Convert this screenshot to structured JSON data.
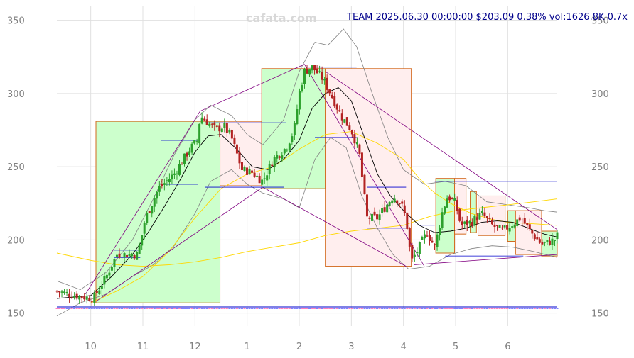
{
  "watermark": "cafata.com",
  "header": {
    "info": "TEAM 2025.06.30 00:00:00 $203.09 0.38% vol:1626.8K 0.7x"
  },
  "colors": {
    "up_candle": "#2ca02c",
    "down_candle": "#b22222",
    "up_box_fill": "#ccffcc",
    "down_box_fill": "#ffeeee",
    "box_border": "#d2691e",
    "grid": "#e0e0e0",
    "tick_text": "#808080",
    "header_text": "#00008b",
    "ma_short": "#000000",
    "ma_mid": "#ffd700",
    "ma_long": "#ffd700",
    "bands": "#808080",
    "trendlines": "#800080",
    "levels": "#0000cd"
  },
  "chart_data": {
    "type": "candlestick",
    "ticker": "TEAM",
    "xlabel": "",
    "ylabel": "",
    "x_range": [
      9.35,
      6.95
    ],
    "ylim": [
      145,
      360
    ],
    "y_ticks": [
      150,
      200,
      250,
      300,
      350
    ],
    "x_ticks": [
      {
        "label": "10",
        "t": 10.0
      },
      {
        "label": "11",
        "t": 11.0
      },
      {
        "label": "12",
        "t": 12.0
      },
      {
        "label": "1",
        "t": 13.0
      },
      {
        "label": "2",
        "t": 14.0
      },
      {
        "label": "3",
        "t": 15.0
      },
      {
        "label": "4",
        "t": 16.0
      },
      {
        "label": "5",
        "t": 17.0
      },
      {
        "label": "6",
        "t": 18.0
      }
    ],
    "grid": true,
    "last": {
      "date": "2025.06.30",
      "close": 203.09,
      "change_pct": 0.38,
      "volume": "1626.8K",
      "volume_ratio": "0.7x"
    },
    "price_path": [
      [
        9.35,
        165
      ],
      [
        9.7,
        162
      ],
      [
        10.05,
        160
      ],
      [
        10.3,
        175
      ],
      [
        10.5,
        190
      ],
      [
        10.9,
        190
      ],
      [
        11.05,
        215
      ],
      [
        11.3,
        235
      ],
      [
        11.6,
        245
      ],
      [
        11.9,
        262
      ],
      [
        12.05,
        268
      ],
      [
        12.1,
        285
      ],
      [
        12.4,
        275
      ],
      [
        12.55,
        278
      ],
      [
        12.7,
        270
      ],
      [
        12.9,
        248
      ],
      [
        13.1,
        246
      ],
      [
        13.3,
        240
      ],
      [
        13.5,
        255
      ],
      [
        13.75,
        263
      ],
      [
        13.9,
        275
      ],
      [
        14.0,
        300
      ],
      [
        14.1,
        315
      ],
      [
        14.25,
        318
      ],
      [
        14.45,
        310
      ],
      [
        14.6,
        300
      ],
      [
        14.8,
        285
      ],
      [
        15.0,
        275
      ],
      [
        15.15,
        260
      ],
      [
        15.3,
        215
      ],
      [
        15.5,
        215
      ],
      [
        15.8,
        230
      ],
      [
        15.95,
        225
      ],
      [
        16.05,
        215
      ],
      [
        16.15,
        185
      ],
      [
        16.3,
        195
      ],
      [
        16.45,
        205
      ],
      [
        16.6,
        195
      ],
      [
        16.75,
        220
      ],
      [
        16.85,
        230
      ],
      [
        17.0,
        225
      ],
      [
        17.1,
        210
      ],
      [
        17.3,
        212
      ],
      [
        17.5,
        218
      ],
      [
        17.7,
        210
      ],
      [
        17.9,
        206
      ],
      [
        18.05,
        210
      ],
      [
        18.25,
        215
      ],
      [
        18.45,
        205
      ],
      [
        18.65,
        197
      ],
      [
        18.75,
        198
      ],
      [
        18.9,
        200
      ],
      [
        18.95,
        203
      ]
    ],
    "boxes": [
      {
        "t0": 10.1,
        "t1": 12.48,
        "low": 157,
        "high": 281,
        "direction": "up"
      },
      {
        "t0": 12.48,
        "t1": 13.28,
        "low": 237,
        "high": 281,
        "direction": "down"
      },
      {
        "t0": 13.28,
        "t1": 14.5,
        "low": 235,
        "high": 317,
        "direction": "up"
      },
      {
        "t0": 14.5,
        "t1": 16.15,
        "low": 182,
        "high": 317,
        "direction": "down"
      },
      {
        "t0": 16.62,
        "t1": 16.98,
        "low": 191,
        "high": 242,
        "direction": "up"
      },
      {
        "t0": 16.98,
        "t1": 17.2,
        "low": 204,
        "high": 242,
        "direction": "down"
      },
      {
        "t0": 17.28,
        "t1": 17.4,
        "low": 205,
        "high": 233,
        "direction": "up"
      },
      {
        "t0": 17.43,
        "t1": 17.95,
        "low": 203,
        "high": 230,
        "direction": "down"
      },
      {
        "t0": 18.0,
        "t1": 18.15,
        "low": 199,
        "high": 220,
        "direction": "up"
      },
      {
        "t0": 18.15,
        "t1": 18.65,
        "low": 190,
        "high": 220,
        "direction": "down"
      },
      {
        "t0": 18.65,
        "t1": 18.95,
        "low": 189,
        "high": 206,
        "direction": "up"
      }
    ],
    "trendlines": [
      {
        "from": [
          9.9,
          163
        ],
        "to": [
          12.1,
          288
        ]
      },
      {
        "from": [
          12.1,
          288
        ],
        "to": [
          14.1,
          320
        ]
      },
      {
        "from": [
          14.1,
          320
        ],
        "to": [
          16.4,
          182
        ]
      },
      {
        "from": [
          13.3,
          236
        ],
        "to": [
          16.05,
          182
        ]
      },
      {
        "from": [
          10.1,
          158
        ],
        "to": [
          13.3,
          236
        ]
      },
      {
        "from": [
          14.5,
          315
        ],
        "to": [
          18.95,
          207
        ]
      },
      {
        "from": [
          16.2,
          183
        ],
        "to": [
          18.95,
          190
        ]
      }
    ],
    "levels": [
      {
        "t0": 10.45,
        "t1": 10.95,
        "price": 193
      },
      {
        "t0": 10.45,
        "t1": 10.95,
        "price": 188
      },
      {
        "t0": 11.35,
        "t1": 12.05,
        "price": 268
      },
      {
        "t0": 11.35,
        "t1": 12.05,
        "price": 238
      },
      {
        "t0": 12.2,
        "t1": 13.75,
        "price": 280
      },
      {
        "t0": 12.2,
        "t1": 13.7,
        "price": 236
      },
      {
        "t0": 14.15,
        "t1": 15.1,
        "price": 318
      },
      {
        "t0": 14.3,
        "t1": 15.1,
        "price": 270
      },
      {
        "t0": 15.3,
        "t1": 16.05,
        "price": 236
      },
      {
        "t0": 15.3,
        "t1": 16.05,
        "price": 208
      },
      {
        "t0": 16.3,
        "t1": 16.6,
        "price": 210
      },
      {
        "t0": 16.6,
        "t1": 18.95,
        "price": 240
      },
      {
        "t0": 16.8,
        "t1": 18.3,
        "price": 189
      }
    ],
    "ma_short": [
      [
        9.35,
        160
      ],
      [
        10.0,
        162
      ],
      [
        10.4,
        175
      ],
      [
        10.8,
        190
      ],
      [
        11.1,
        205
      ],
      [
        11.4,
        222
      ],
      [
        11.7,
        240
      ],
      [
        12.0,
        260
      ],
      [
        12.25,
        271
      ],
      [
        12.5,
        272
      ],
      [
        12.8,
        262
      ],
      [
        13.1,
        250
      ],
      [
        13.4,
        248
      ],
      [
        13.7,
        255
      ],
      [
        14.0,
        268
      ],
      [
        14.25,
        290
      ],
      [
        14.5,
        300
      ],
      [
        14.75,
        304
      ],
      [
        15.0,
        295
      ],
      [
        15.25,
        270
      ],
      [
        15.5,
        245
      ],
      [
        15.75,
        230
      ],
      [
        16.0,
        220
      ],
      [
        16.3,
        210
      ],
      [
        16.6,
        205
      ],
      [
        16.9,
        206
      ],
      [
        17.2,
        208
      ],
      [
        17.5,
        212
      ],
      [
        17.8,
        213
      ],
      [
        18.1,
        212
      ],
      [
        18.4,
        208
      ],
      [
        18.7,
        204
      ],
      [
        18.95,
        202
      ]
    ],
    "ma_mid": [
      [
        10.0,
        157
      ],
      [
        10.5,
        165
      ],
      [
        11.0,
        175
      ],
      [
        11.5,
        192
      ],
      [
        12.0,
        215
      ],
      [
        12.5,
        235
      ],
      [
        13.0,
        245
      ],
      [
        13.5,
        250
      ],
      [
        14.0,
        262
      ],
      [
        14.5,
        272
      ],
      [
        15.0,
        274
      ],
      [
        15.5,
        266
      ],
      [
        16.0,
        255
      ],
      [
        16.3,
        242
      ],
      [
        16.6,
        232
      ],
      [
        16.9,
        225
      ],
      [
        17.3,
        218
      ],
      [
        17.7,
        214
      ],
      [
        18.0,
        212
      ],
      [
        18.5,
        211
      ],
      [
        18.95,
        210
      ]
    ],
    "ma_long": [
      [
        9.35,
        191
      ],
      [
        10.0,
        186
      ],
      [
        10.5,
        183
      ],
      [
        11.0,
        182
      ],
      [
        11.5,
        183
      ],
      [
        12.0,
        185
      ],
      [
        12.5,
        188
      ],
      [
        13.0,
        192
      ],
      [
        13.5,
        195
      ],
      [
        14.0,
        198
      ],
      [
        14.5,
        203
      ],
      [
        15.0,
        206
      ],
      [
        15.5,
        208
      ],
      [
        16.0,
        210
      ],
      [
        16.5,
        216
      ],
      [
        17.0,
        220
      ],
      [
        17.5,
        222
      ],
      [
        18.0,
        224
      ],
      [
        18.5,
        226
      ],
      [
        18.95,
        228
      ]
    ],
    "bands": {
      "upper": [
        [
          9.35,
          172
        ],
        [
          9.8,
          166
        ],
        [
          10.3,
          178
        ],
        [
          10.8,
          200
        ],
        [
          11.2,
          228
        ],
        [
          11.6,
          258
        ],
        [
          12.0,
          282
        ],
        [
          12.3,
          292
        ],
        [
          12.7,
          285
        ],
        [
          13.0,
          272
        ],
        [
          13.3,
          265
        ],
        [
          13.7,
          282
        ],
        [
          14.0,
          315
        ],
        [
          14.3,
          335
        ],
        [
          14.55,
          333
        ],
        [
          14.85,
          344
        ],
        [
          15.1,
          332
        ],
        [
          15.4,
          300
        ],
        [
          15.7,
          270
        ],
        [
          16.0,
          248
        ],
        [
          16.4,
          238
        ],
        [
          16.8,
          240
        ],
        [
          17.2,
          237
        ],
        [
          17.6,
          226
        ],
        [
          18.0,
          224
        ],
        [
          18.4,
          222
        ],
        [
          18.7,
          220
        ],
        [
          18.95,
          219
        ]
      ],
      "lower": [
        [
          9.35,
          148
        ],
        [
          9.8,
          157
        ],
        [
          10.3,
          163
        ],
        [
          10.8,
          175
        ],
        [
          11.2,
          183
        ],
        [
          11.6,
          196
        ],
        [
          12.0,
          218
        ],
        [
          12.3,
          240
        ],
        [
          12.7,
          248
        ],
        [
          13.0,
          238
        ],
        [
          13.3,
          232
        ],
        [
          13.7,
          228
        ],
        [
          14.0,
          222
        ],
        [
          14.3,
          255
        ],
        [
          14.6,
          270
        ],
        [
          14.9,
          263
        ],
        [
          15.2,
          230
        ],
        [
          15.5,
          208
        ],
        [
          15.8,
          190
        ],
        [
          16.1,
          180
        ],
        [
          16.5,
          182
        ],
        [
          16.9,
          190
        ],
        [
          17.3,
          194
        ],
        [
          17.7,
          196
        ],
        [
          18.1,
          195
        ],
        [
          18.5,
          192
        ],
        [
          18.95,
          188
        ]
      ]
    }
  }
}
